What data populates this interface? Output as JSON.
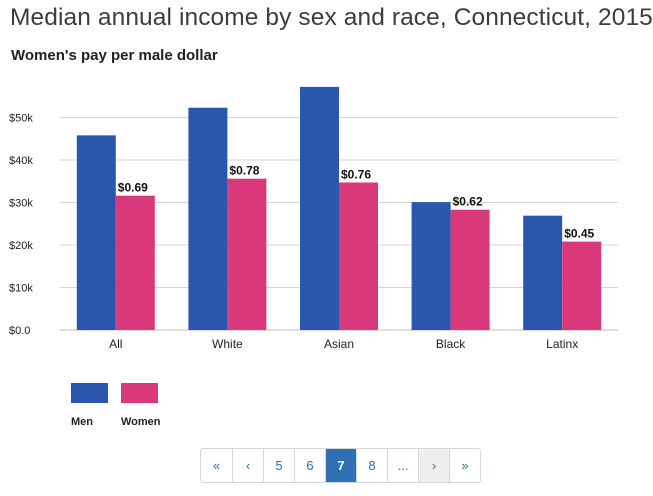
{
  "chart_data": {
    "type": "bar",
    "title": "Median annual income by sex and race, Connecticut, 2015",
    "subtitle": "Women's pay per male dollar",
    "categories": [
      "All",
      "White",
      "Asian",
      "Black",
      "Latinx"
    ],
    "series": [
      {
        "name": "Men",
        "color": "#2a57ad",
        "values": [
          45800,
          52300,
          57200,
          30100,
          26900
        ]
      },
      {
        "name": "Women",
        "color": "#d9387a",
        "values": [
          31600,
          35600,
          34700,
          28300,
          20800
        ]
      }
    ],
    "data_labels": [
      "$0.69",
      "$0.78",
      "$0.76",
      "$0.62",
      "$0.45"
    ],
    "ylim": [
      0,
      60000
    ],
    "y_ticks": [
      {
        "value": 0,
        "label": "$0.0"
      },
      {
        "value": 10000,
        "label": "$10k"
      },
      {
        "value": 20000,
        "label": "$20k"
      },
      {
        "value": 30000,
        "label": "$30k"
      },
      {
        "value": 40000,
        "label": "$40k"
      },
      {
        "value": 50000,
        "label": "$50k"
      }
    ],
    "xlabel": "",
    "ylabel": "",
    "grid": true,
    "legend_position": "bottom-left"
  },
  "pagination": {
    "items": [
      "«",
      "‹",
      "5",
      "6",
      "7",
      "8",
      "...",
      "›",
      "»"
    ],
    "active": "7"
  }
}
